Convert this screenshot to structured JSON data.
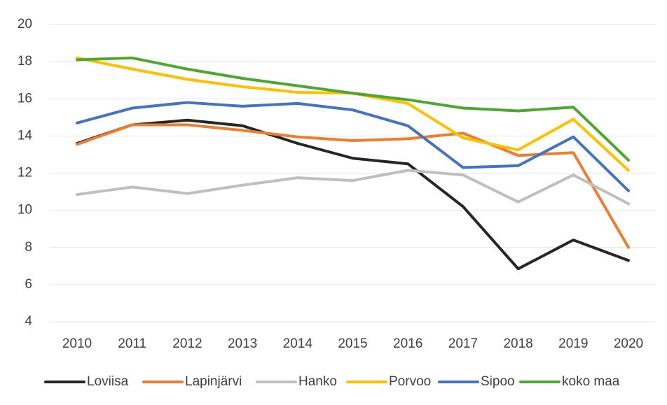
{
  "chart_data": {
    "type": "line",
    "categories": [
      "2010",
      "2011",
      "2012",
      "2013",
      "2014",
      "2015",
      "2016",
      "2017",
      "2018",
      "2019",
      "2020"
    ],
    "series": [
      {
        "name": "Loviisa",
        "color": "#262626",
        "values": [
          13.6,
          14.6,
          14.85,
          14.55,
          13.6,
          12.8,
          12.5,
          10.2,
          6.85,
          8.4,
          7.3
        ]
      },
      {
        "name": "Lapinjärvi",
        "color": "#ed7d31",
        "values": [
          13.55,
          14.6,
          14.6,
          14.3,
          13.95,
          13.75,
          13.85,
          14.15,
          12.95,
          13.1,
          8.0
        ]
      },
      {
        "name": "Hanko",
        "color": "#bfbfbf",
        "values": [
          10.85,
          11.25,
          10.9,
          11.35,
          11.75,
          11.6,
          12.15,
          11.9,
          10.45,
          11.9,
          10.35
        ]
      },
      {
        "name": "Porvoo",
        "color": "#ffc000",
        "values": [
          18.2,
          17.6,
          17.05,
          16.65,
          16.35,
          16.3,
          15.75,
          13.9,
          13.25,
          14.9,
          12.15
        ]
      },
      {
        "name": "Sipoo",
        "color": "#4472c4",
        "values": [
          14.7,
          15.5,
          15.8,
          15.6,
          15.75,
          15.4,
          14.55,
          12.3,
          12.4,
          13.95,
          11.05
        ]
      },
      {
        "name": "koko maa",
        "color": "#4ea72e",
        "values": [
          18.1,
          18.2,
          17.6,
          17.1,
          16.7,
          16.3,
          15.95,
          15.5,
          15.35,
          15.55,
          12.7
        ]
      }
    ],
    "ylim": [
      4,
      20
    ],
    "yticks": [
      4,
      6,
      8,
      10,
      12,
      14,
      16,
      18,
      20
    ],
    "grid": true,
    "legend": "bottom"
  }
}
